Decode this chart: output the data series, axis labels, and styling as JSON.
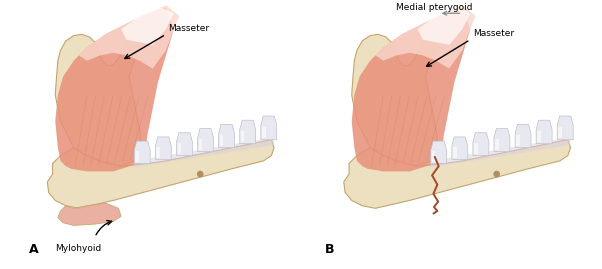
{
  "background_color": "#ffffff",
  "bone_color": "#ede0c0",
  "bone_edge_color": "#c4a46e",
  "bone_shadow": "#d4b87a",
  "muscle_salmon": "#e8907a",
  "muscle_light": "#f0b8a8",
  "muscle_lighter": "#f8d8cc",
  "muscle_dark": "#c87060",
  "tooth_color": "#e8e8f0",
  "tooth_highlight": "#f8f8ff",
  "tooth_shadow": "#c0c0d0",
  "fracture_color": "#a04828",
  "mylohyoid_color": "#e8a898",
  "medial_arrow_color": "#888888",
  "label_A": "A",
  "label_B": "B",
  "label_masseter_A": "Masseter",
  "label_masseter_B": "Masseter",
  "label_medial": "Medial pterygoid",
  "label_mylohyoid": "Mylohyoid",
  "figsize": [
    6.02,
    2.69
  ],
  "dpi": 100
}
